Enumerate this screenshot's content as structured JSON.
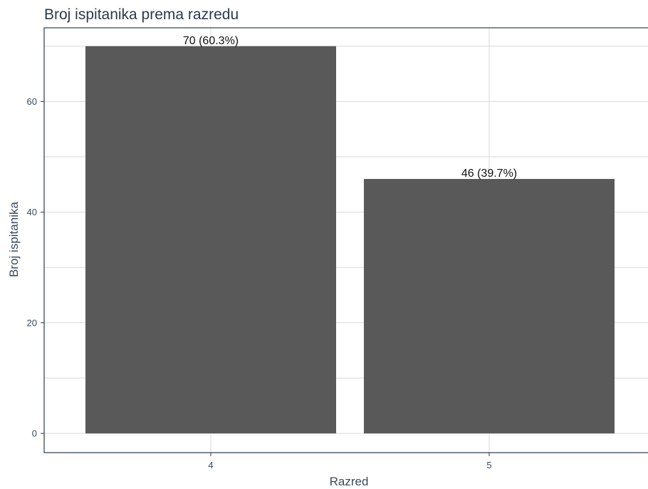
{
  "chart_data": {
    "type": "bar",
    "title": "Broj ispitanika prema razredu",
    "xlabel": "Razred",
    "ylabel": "Broj ispitanika",
    "categories": [
      "4",
      "5"
    ],
    "values": [
      70,
      46
    ],
    "data_labels": [
      "70 (60.3%)",
      "46 (39.7%)"
    ],
    "ylim": [
      0,
      73.5
    ],
    "yticks": [
      0,
      20,
      40,
      60
    ],
    "grid": true,
    "legend": "none",
    "colors": {
      "bar": "#595959",
      "grid": "#d9d9d9",
      "panel_border": "#2b3a4d",
      "text": "#2b3a4d"
    }
  }
}
